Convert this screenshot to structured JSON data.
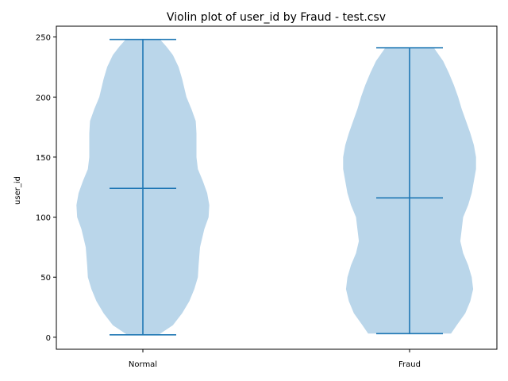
{
  "chart_data": {
    "type": "violin",
    "title": "Violin plot of user_id by Fraud - test.csv",
    "xlabel": "",
    "ylabel": "user_id",
    "categories": [
      "Normal",
      "Fraud"
    ],
    "ylim": [
      -10,
      259
    ],
    "yticks": [
      0,
      50,
      100,
      150,
      200,
      250
    ],
    "grid": false,
    "colors": {
      "body": "#bad6ea",
      "line": "#1f77b4"
    },
    "series": [
      {
        "category": "Normal",
        "min": 2,
        "max": 248,
        "median": 124,
        "density_profile": [
          [
            2,
            0.22
          ],
          [
            10,
            0.42
          ],
          [
            20,
            0.55
          ],
          [
            30,
            0.65
          ],
          [
            40,
            0.72
          ],
          [
            50,
            0.77
          ],
          [
            60,
            0.78
          ],
          [
            75,
            0.8
          ],
          [
            90,
            0.86
          ],
          [
            100,
            0.92
          ],
          [
            110,
            0.93
          ],
          [
            120,
            0.9
          ],
          [
            130,
            0.84
          ],
          [
            140,
            0.77
          ],
          [
            150,
            0.75
          ],
          [
            160,
            0.75
          ],
          [
            170,
            0.75
          ],
          [
            180,
            0.74
          ],
          [
            190,
            0.68
          ],
          [
            200,
            0.61
          ],
          [
            215,
            0.55
          ],
          [
            225,
            0.5
          ],
          [
            235,
            0.42
          ],
          [
            242,
            0.33
          ],
          [
            248,
            0.24
          ]
        ]
      },
      {
        "category": "Fraud",
        "min": 3,
        "max": 241,
        "median": 116,
        "density_profile": [
          [
            3,
            0.58
          ],
          [
            10,
            0.66
          ],
          [
            20,
            0.78
          ],
          [
            30,
            0.85
          ],
          [
            40,
            0.89
          ],
          [
            50,
            0.87
          ],
          [
            60,
            0.82
          ],
          [
            70,
            0.75
          ],
          [
            80,
            0.71
          ],
          [
            90,
            0.73
          ],
          [
            100,
            0.75
          ],
          [
            110,
            0.82
          ],
          [
            120,
            0.87
          ],
          [
            130,
            0.9
          ],
          [
            140,
            0.93
          ],
          [
            150,
            0.93
          ],
          [
            160,
            0.9
          ],
          [
            170,
            0.85
          ],
          [
            180,
            0.79
          ],
          [
            190,
            0.73
          ],
          [
            200,
            0.68
          ],
          [
            210,
            0.62
          ],
          [
            220,
            0.55
          ],
          [
            230,
            0.47
          ],
          [
            241,
            0.34
          ]
        ]
      }
    ]
  }
}
